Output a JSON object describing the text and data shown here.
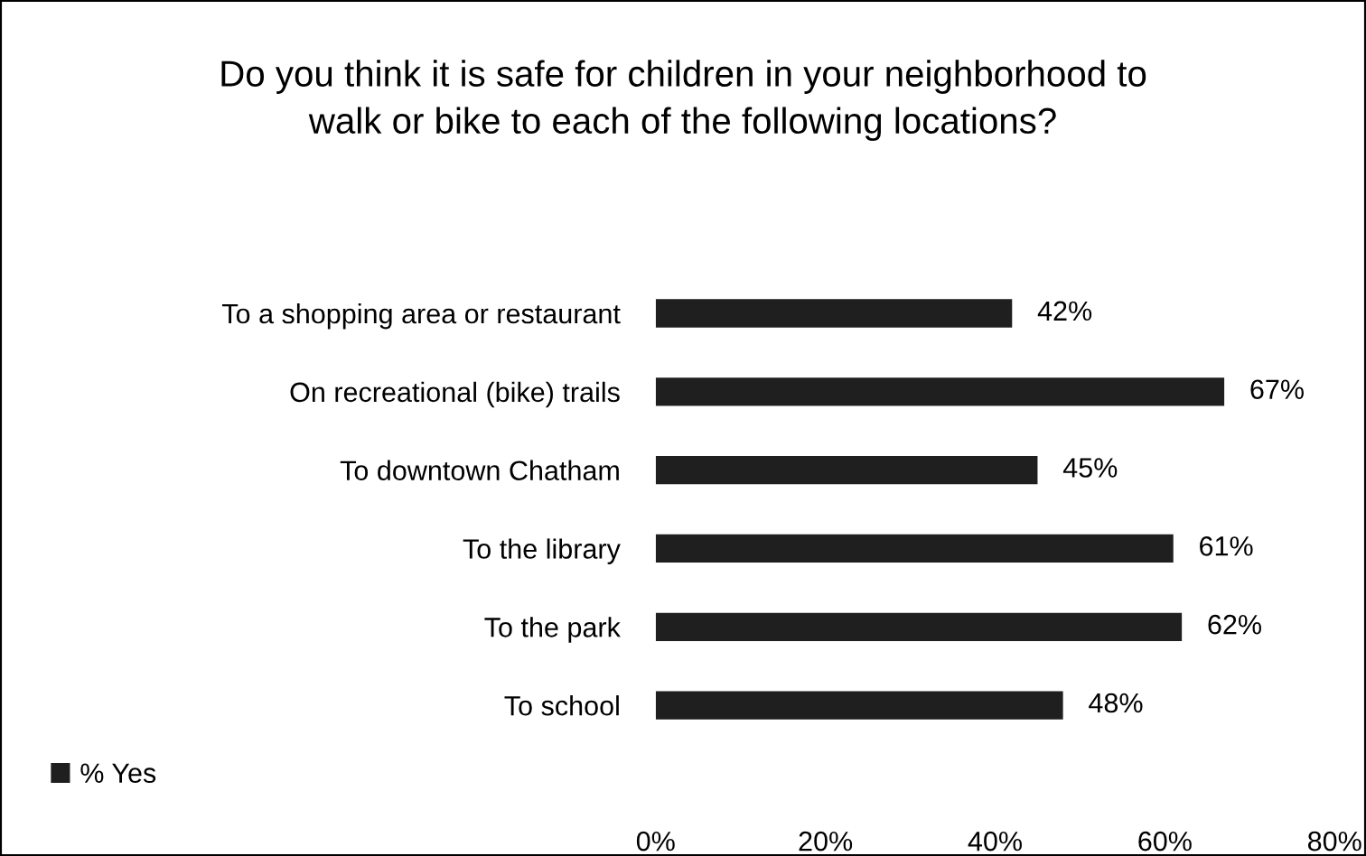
{
  "chart_data": {
    "type": "bar",
    "orientation": "horizontal",
    "title": "Do you think it is safe for children in your neighborhood to\nwalk or bike to each of the following locations?",
    "categories": [
      "To a shopping area or restaurant",
      "On recreational (bike) trails",
      "To downtown Chatham",
      "To the library",
      "To the park",
      "To school"
    ],
    "series": [
      {
        "name": "% Yes",
        "color": "#1f1f1f",
        "values": [
          42,
          67,
          45,
          61,
          62,
          48
        ],
        "value_labels": [
          "42%",
          "67%",
          "45%",
          "61%",
          "62%",
          "48%"
        ]
      }
    ],
    "xlim": [
      0,
      80
    ],
    "xticks": [
      {
        "value": 0,
        "label": "0%"
      },
      {
        "value": 20,
        "label": "20%"
      },
      {
        "value": 40,
        "label": "40%"
      },
      {
        "value": 60,
        "label": "60%"
      },
      {
        "value": 80,
        "label": "80%"
      }
    ],
    "grid": false,
    "legend": "bottom left"
  }
}
